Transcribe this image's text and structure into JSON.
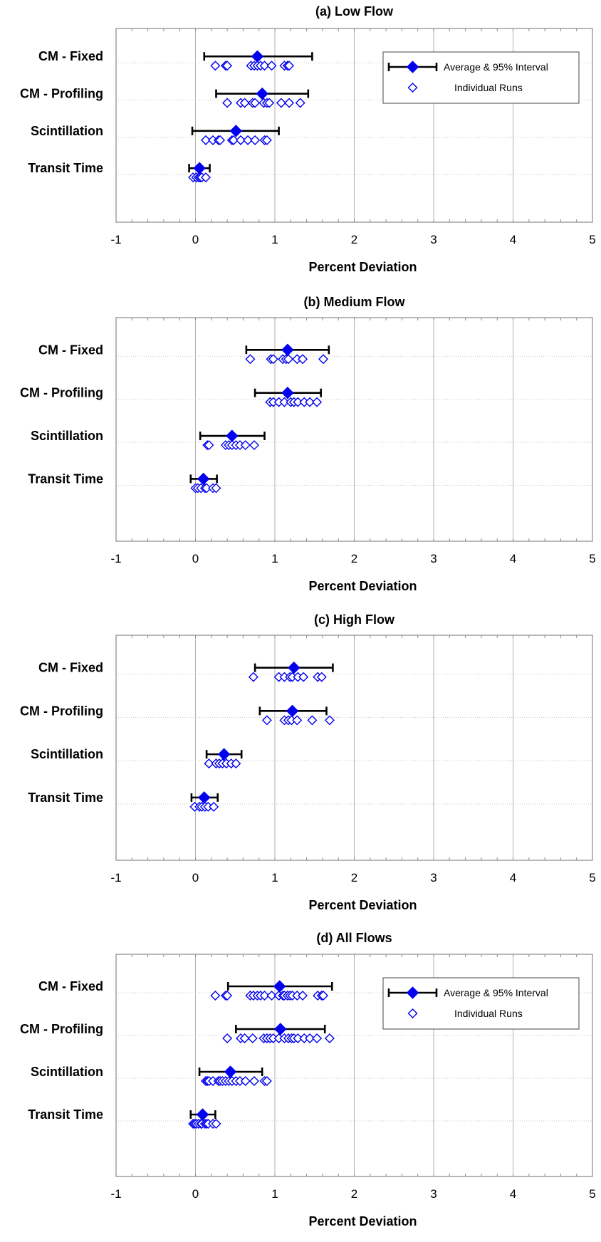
{
  "colors": {
    "marker": "#0000ee",
    "error_bar": "#000000",
    "vgrid": "#b0b0b0",
    "hgrid": "#c8c8c8",
    "frame": "#888888"
  },
  "chart_data": [
    {
      "type": "scatter",
      "title": "(a)  Low Flow",
      "xlabel": "Percent Deviation",
      "xlim": [
        -1,
        5
      ],
      "xticks": [
        "-1",
        "0",
        "1",
        "2",
        "3",
        "4",
        "5"
      ],
      "categories": [
        "CM - Fixed",
        "CM - Profiling",
        "Scintillation",
        "Transit Time"
      ],
      "legend": {
        "show": true,
        "items": [
          "Average & 95% Interval",
          "Individual Runs"
        ]
      },
      "series": [
        {
          "category": "CM - Fixed",
          "mean": 0.78,
          "ci": [
            0.11,
            1.47
          ],
          "runs": [
            0.25,
            0.38,
            0.4,
            0.7,
            0.74,
            0.78,
            0.82,
            0.87,
            0.96,
            1.12,
            1.16,
            1.18
          ]
        },
        {
          "category": "CM - Profiling",
          "mean": 0.84,
          "ci": [
            0.26,
            1.42
          ],
          "runs": [
            0.4,
            0.57,
            0.62,
            0.72,
            0.75,
            0.86,
            0.9,
            0.93,
            1.08,
            1.18,
            1.32
          ]
        },
        {
          "category": "Scintillation",
          "mean": 0.51,
          "ci": [
            -0.04,
            1.05
          ],
          "runs": [
            0.13,
            0.22,
            0.29,
            0.31,
            0.46,
            0.48,
            0.57,
            0.66,
            0.75,
            0.87,
            0.9
          ]
        },
        {
          "category": "Transit Time",
          "mean": 0.05,
          "ci": [
            -0.08,
            0.18
          ],
          "runs": [
            -0.03,
            0.01,
            0.04,
            0.06,
            0.08,
            0.13
          ]
        }
      ]
    },
    {
      "type": "scatter",
      "title": "(b)  Medium Flow",
      "xlabel": "Percent Deviation",
      "xlim": [
        -1,
        5
      ],
      "xticks": [
        "-1",
        "0",
        "1",
        "2",
        "3",
        "4",
        "5"
      ],
      "categories": [
        "CM - Fixed",
        "CM - Profiling",
        "Scintillation",
        "Transit Time"
      ],
      "legend": {
        "show": false,
        "items": []
      },
      "series": [
        {
          "category": "CM - Fixed",
          "mean": 1.16,
          "ci": [
            0.64,
            1.68
          ],
          "runs": [
            0.69,
            0.95,
            0.98,
            1.1,
            1.14,
            1.17,
            1.28,
            1.35,
            1.61
          ]
        },
        {
          "category": "CM - Profiling",
          "mean": 1.16,
          "ci": [
            0.75,
            1.58
          ],
          "runs": [
            0.94,
            0.98,
            1.05,
            1.12,
            1.2,
            1.24,
            1.29,
            1.37,
            1.44,
            1.53
          ]
        },
        {
          "category": "Scintillation",
          "mean": 0.46,
          "ci": [
            0.06,
            0.87
          ],
          "runs": [
            0.15,
            0.17,
            0.38,
            0.42,
            0.46,
            0.51,
            0.56,
            0.63,
            0.74
          ]
        },
        {
          "category": "Transit Time",
          "mean": 0.1,
          "ci": [
            -0.06,
            0.27
          ],
          "runs": [
            0.0,
            0.03,
            0.07,
            0.12,
            0.14,
            0.22,
            0.26
          ]
        }
      ]
    },
    {
      "type": "scatter",
      "title": "(c)  High Flow",
      "xlabel": "Percent Deviation",
      "xlim": [
        -1,
        5
      ],
      "xticks": [
        "-1",
        "0",
        "1",
        "2",
        "3",
        "4",
        "5"
      ],
      "categories": [
        "CM - Fixed",
        "CM - Profiling",
        "Scintillation",
        "Transit Time"
      ],
      "legend": {
        "show": false,
        "items": []
      },
      "series": [
        {
          "category": "CM - Fixed",
          "mean": 1.24,
          "ci": [
            0.75,
            1.73
          ],
          "runs": [
            0.73,
            1.05,
            1.12,
            1.19,
            1.22,
            1.29,
            1.36,
            1.54,
            1.59
          ]
        },
        {
          "category": "CM - Profiling",
          "mean": 1.22,
          "ci": [
            0.81,
            1.65
          ],
          "runs": [
            0.9,
            1.12,
            1.17,
            1.21,
            1.28,
            1.47,
            1.69
          ]
        },
        {
          "category": "Scintillation",
          "mean": 0.36,
          "ci": [
            0.14,
            0.58
          ],
          "runs": [
            0.17,
            0.26,
            0.3,
            0.34,
            0.39,
            0.45,
            0.51
          ]
        },
        {
          "category": "Transit Time",
          "mean": 0.11,
          "ci": [
            -0.05,
            0.28
          ],
          "runs": [
            -0.01,
            0.05,
            0.08,
            0.12,
            0.16,
            0.23
          ]
        }
      ]
    },
    {
      "type": "scatter",
      "title": "(d)  All Flows",
      "xlabel": "Percent Deviation",
      "xlim": [
        -1,
        5
      ],
      "xticks": [
        "-1",
        "0",
        "1",
        "2",
        "3",
        "4",
        "5"
      ],
      "categories": [
        "CM - Fixed",
        "CM - Profiling",
        "Scintillation",
        "Transit Time"
      ],
      "legend": {
        "show": true,
        "items": [
          "Average & 95% Interval",
          "Individual Runs"
        ]
      },
      "series": [
        {
          "category": "CM - Fixed",
          "mean": 1.06,
          "ci": [
            0.41,
            1.72
          ],
          "runs": [
            0.25,
            0.38,
            0.4,
            0.69,
            0.73,
            0.78,
            0.82,
            0.87,
            0.96,
            1.05,
            1.1,
            1.12,
            1.16,
            1.19,
            1.22,
            1.28,
            1.35,
            1.54,
            1.59,
            1.61
          ]
        },
        {
          "category": "CM - Profiling",
          "mean": 1.07,
          "ci": [
            0.51,
            1.63
          ],
          "runs": [
            0.4,
            0.57,
            0.62,
            0.72,
            0.86,
            0.9,
            0.94,
            0.98,
            1.05,
            1.12,
            1.17,
            1.21,
            1.24,
            1.29,
            1.37,
            1.44,
            1.53,
            1.69
          ]
        },
        {
          "category": "Scintillation",
          "mean": 0.44,
          "ci": [
            0.05,
            0.84
          ],
          "runs": [
            0.13,
            0.15,
            0.17,
            0.22,
            0.29,
            0.31,
            0.34,
            0.38,
            0.42,
            0.46,
            0.51,
            0.56,
            0.63,
            0.74,
            0.87,
            0.9
          ]
        },
        {
          "category": "Transit Time",
          "mean": 0.09,
          "ci": [
            -0.06,
            0.25
          ],
          "runs": [
            -0.03,
            -0.01,
            0.01,
            0.04,
            0.07,
            0.08,
            0.12,
            0.14,
            0.16,
            0.22,
            0.26
          ]
        }
      ]
    }
  ]
}
